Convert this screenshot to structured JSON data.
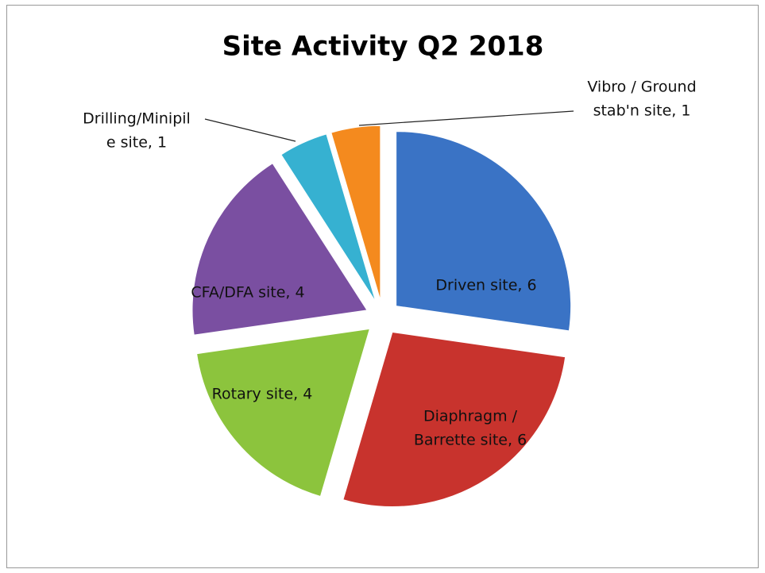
{
  "chart_data": {
    "type": "pie",
    "title": "Site Activity Q2 2018",
    "values": [
      6,
      6,
      4,
      4,
      1,
      1
    ],
    "value_labels": [
      [
        "Driven site, 6"
      ],
      [
        "Diaphragm /",
        "Barrette site, 6"
      ],
      [
        "Rotary site, 4"
      ],
      [
        "CFA/DFA site, 4"
      ],
      [
        "Drilling/Minipil",
        "e site, 1"
      ],
      [
        "Vibro / Ground",
        "stab'n site, 1"
      ]
    ],
    "colors": [
      "#3a73c5",
      "#c8332d",
      "#8cc43d",
      "#7a4fa1",
      "#36b1d1",
      "#f48a1e"
    ],
    "start_angle": 90,
    "direction": "clockwise",
    "exploded": true
  }
}
